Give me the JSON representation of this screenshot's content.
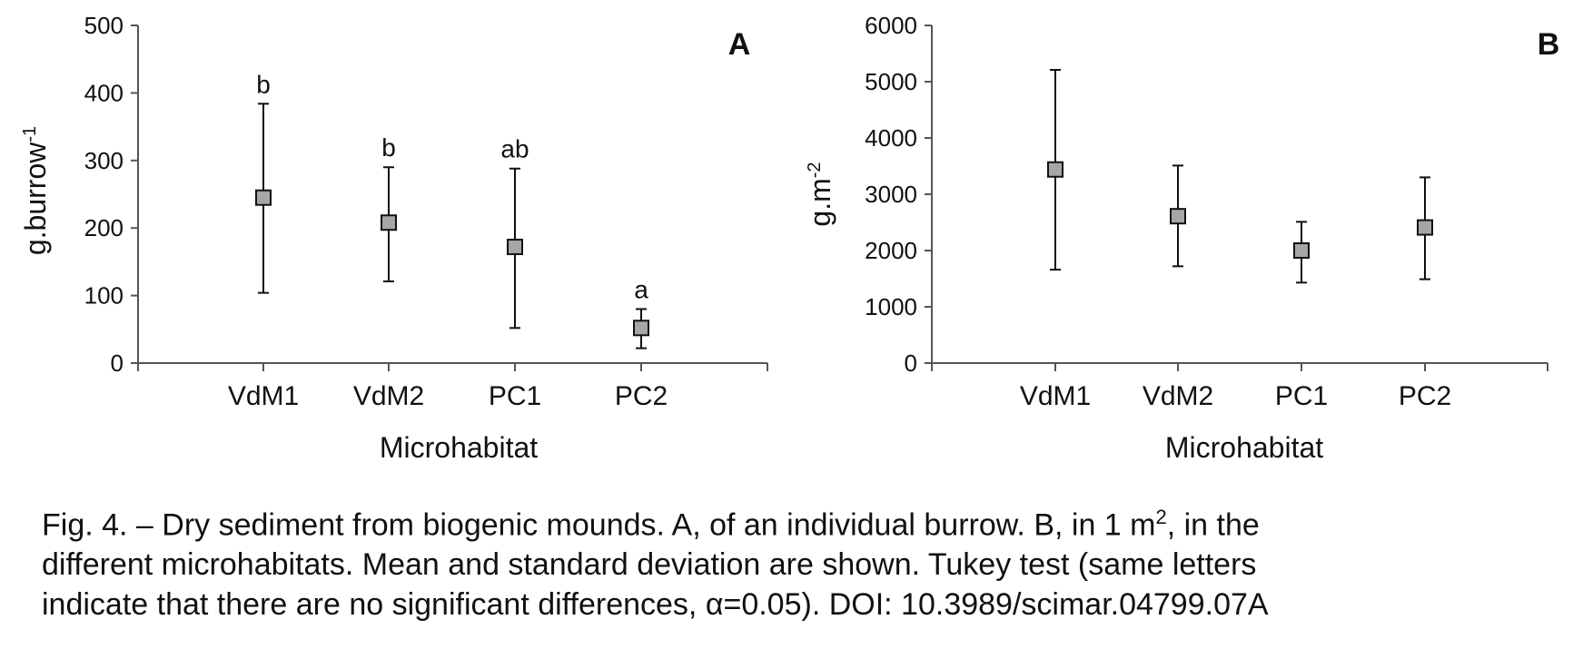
{
  "chart_data": [
    {
      "type": "scatter",
      "panel_label": "A",
      "categories": [
        "VdM1",
        "VdM2",
        "PC1",
        "PC2"
      ],
      "series": [
        {
          "values": [
            245,
            208,
            172,
            52
          ],
          "error_low": [
            104,
            121,
            52,
            22
          ],
          "error_high": [
            384,
            290,
            288,
            80
          ],
          "significance_letters": [
            "b",
            "b",
            "ab",
            "a"
          ]
        }
      ],
      "xlabel": "Microhabitat",
      "ylabel_main": "g.burrow",
      "ylabel_sup": "-1",
      "ylim": [
        0,
        500
      ],
      "yticks": [
        "0",
        "100",
        "200",
        "300",
        "400",
        "500"
      ],
      "grid": false,
      "marker_color": "#a6a6a6"
    },
    {
      "type": "scatter",
      "panel_label": "B",
      "categories": [
        "VdM1",
        "VdM2",
        "PC1",
        "PC2"
      ],
      "series": [
        {
          "values": [
            3440,
            2610,
            2000,
            2410
          ],
          "error_low": [
            1660,
            1720,
            1430,
            1490
          ],
          "error_high": [
            5210,
            3510,
            2510,
            3300
          ]
        }
      ],
      "xlabel": "Microhabitat",
      "ylabel_main": "g.m",
      "ylabel_sup": "-2",
      "ylim": [
        0,
        6000
      ],
      "yticks": [
        "0",
        "1000",
        "2000",
        "3000",
        "4000",
        "5000",
        "6000"
      ],
      "grid": false,
      "marker_color": "#a6a6a6"
    }
  ],
  "caption": {
    "line1_a": "Fig. 4. – Dry sediment from biogenic mounds. A, of an individual burrow. B, in 1 m",
    "line1_sup": "2",
    "line1_b": ", in the",
    "line2": "different microhabitats. Mean and standard deviation are shown. Tukey test (same letters",
    "line3": "indicate that there are no significant differences, α=0.05). DOI: 10.3989/scimar.04799.07A"
  }
}
